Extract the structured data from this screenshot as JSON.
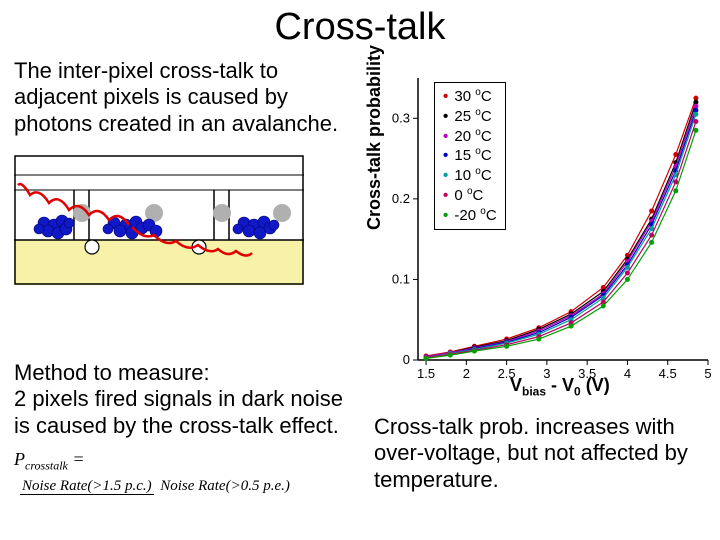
{
  "title": "Cross-talk",
  "intro": "The inter-pixel cross-talk to adjacent pixels is caused by photons created in an avalanche.",
  "method": "Method to measure:\n2 pixels fired signals in dark noise is caused by the cross-talk effect.",
  "formula": {
    "lhs": "P",
    "lhs_sub": "crosstalk",
    "num": "Noise Rate(>1.5 p.c.)",
    "den": "Noise Rate(>0.5 p.e.)"
  },
  "caption": "Cross-talk prob. increases with over-voltage, but not affected by temperature.",
  "diagram": {
    "background_top": "#ffffff",
    "background_bottom": "#f7f2a8",
    "line_color": "#000000",
    "cell_border": "#000000",
    "blue": "#1018c8",
    "dark_blue": "#02046a",
    "grey": "#b0b0b0",
    "photon_color": "#e00000",
    "white_circle_stroke": "#000"
  },
  "legend": [
    {
      "color": "#d00000",
      "label": "30",
      "unit": "C"
    },
    {
      "color": "#000000",
      "label": "25",
      "unit": "C"
    },
    {
      "color": "#c000c0",
      "label": "20",
      "unit": "C"
    },
    {
      "color": "#0000c0",
      "label": "15",
      "unit": "C"
    },
    {
      "color": "#00a0a0",
      "label": "10",
      "unit": "C"
    },
    {
      "color": "#c00060",
      "label": "  0",
      "unit": "C"
    },
    {
      "color": "#00a000",
      "label": "-20",
      "unit": "C"
    }
  ],
  "chart": {
    "type": "scatter-line",
    "xlabel": "V_bias − V_0 (V)",
    "ylabel": "Cross-talk probability",
    "xlim": [
      1.4,
      5.0
    ],
    "ylim": [
      0.0,
      0.35
    ],
    "xticks": [
      1.5,
      2,
      2.5,
      3,
      3.5,
      4,
      4.5,
      5
    ],
    "yticks": [
      0,
      0.1,
      0.2,
      0.3
    ],
    "axis_color": "#000000",
    "tick_fontsize": 13,
    "label_fontsize": 18,
    "series": [
      {
        "name": "30C",
        "color": "#d00000",
        "marker": "circle",
        "points": [
          [
            1.5,
            0.005
          ],
          [
            1.8,
            0.01
          ],
          [
            2.1,
            0.017
          ],
          [
            2.5,
            0.026
          ],
          [
            2.9,
            0.04
          ],
          [
            3.3,
            0.06
          ],
          [
            3.7,
            0.09
          ],
          [
            4.0,
            0.13
          ],
          [
            4.3,
            0.185
          ],
          [
            4.6,
            0.255
          ],
          [
            4.85,
            0.325
          ]
        ]
      },
      {
        "name": "25C",
        "color": "#000000",
        "marker": "circle",
        "points": [
          [
            1.5,
            0.004
          ],
          [
            1.8,
            0.009
          ],
          [
            2.1,
            0.016
          ],
          [
            2.5,
            0.024
          ],
          [
            2.9,
            0.038
          ],
          [
            3.3,
            0.057
          ],
          [
            3.7,
            0.085
          ],
          [
            4.0,
            0.125
          ],
          [
            4.3,
            0.175
          ],
          [
            4.6,
            0.245
          ],
          [
            4.85,
            0.32
          ]
        ]
      },
      {
        "name": "20C",
        "color": "#c000c0",
        "marker": "circle",
        "points": [
          [
            1.5,
            0.004
          ],
          [
            1.8,
            0.009
          ],
          [
            2.1,
            0.015
          ],
          [
            2.5,
            0.023
          ],
          [
            2.9,
            0.036
          ],
          [
            3.3,
            0.055
          ],
          [
            3.7,
            0.082
          ],
          [
            4.0,
            0.122
          ],
          [
            4.3,
            0.172
          ],
          [
            4.6,
            0.24
          ],
          [
            4.85,
            0.315
          ]
        ]
      },
      {
        "name": "15C",
        "color": "#0000c0",
        "marker": "circle",
        "points": [
          [
            1.5,
            0.003
          ],
          [
            1.8,
            0.008
          ],
          [
            2.1,
            0.014
          ],
          [
            2.5,
            0.022
          ],
          [
            2.9,
            0.034
          ],
          [
            3.3,
            0.053
          ],
          [
            3.7,
            0.08
          ],
          [
            4.0,
            0.118
          ],
          [
            4.3,
            0.168
          ],
          [
            4.6,
            0.235
          ],
          [
            4.85,
            0.31
          ]
        ]
      },
      {
        "name": "10C",
        "color": "#00a0a0",
        "marker": "circle",
        "points": [
          [
            1.5,
            0.003
          ],
          [
            1.8,
            0.008
          ],
          [
            2.1,
            0.013
          ],
          [
            2.5,
            0.021
          ],
          [
            2.9,
            0.032
          ],
          [
            3.3,
            0.05
          ],
          [
            3.7,
            0.077
          ],
          [
            4.0,
            0.115
          ],
          [
            4.3,
            0.163
          ],
          [
            4.6,
            0.23
          ],
          [
            4.85,
            0.305
          ]
        ]
      },
      {
        "name": "0C",
        "color": "#c00060",
        "marker": "circle",
        "points": [
          [
            1.5,
            0.003
          ],
          [
            1.8,
            0.007
          ],
          [
            2.1,
            0.012
          ],
          [
            2.5,
            0.019
          ],
          [
            2.9,
            0.029
          ],
          [
            3.3,
            0.046
          ],
          [
            3.7,
            0.072
          ],
          [
            4.0,
            0.108
          ],
          [
            4.3,
            0.155
          ],
          [
            4.6,
            0.221
          ],
          [
            4.85,
            0.296
          ]
        ]
      },
      {
        "name": "-20C",
        "color": "#00a000",
        "marker": "circle",
        "points": [
          [
            1.5,
            0.002
          ],
          [
            1.8,
            0.006
          ],
          [
            2.1,
            0.011
          ],
          [
            2.5,
            0.017
          ],
          [
            2.9,
            0.026
          ],
          [
            3.3,
            0.042
          ],
          [
            3.7,
            0.067
          ],
          [
            4.0,
            0.1
          ],
          [
            4.3,
            0.146
          ],
          [
            4.6,
            0.21
          ],
          [
            4.85,
            0.285
          ]
        ]
      }
    ]
  }
}
